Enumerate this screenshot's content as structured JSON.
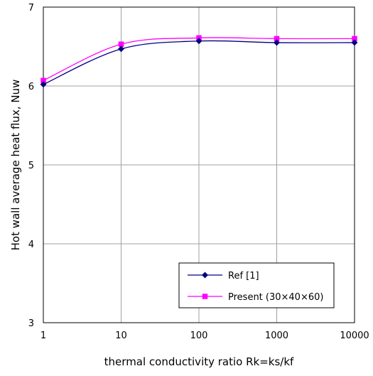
{
  "chart_data": {
    "type": "line",
    "xlabel": "thermal conductivity ratio Rk=ks/kf",
    "ylabel": "Hot wall average heat flux, Nuw",
    "x_scale": "log",
    "xlim": [
      1,
      10000
    ],
    "ylim": [
      3,
      7
    ],
    "x_ticks": [
      1,
      10,
      100,
      1000,
      10000
    ],
    "x_tick_labels": [
      "1",
      "10",
      "100",
      "1000",
      "10000"
    ],
    "y_ticks": [
      3,
      4,
      5,
      6,
      7
    ],
    "y_tick_labels": [
      "3",
      "4",
      "5",
      "6",
      "7"
    ],
    "grid": true,
    "legend_position": "bottom-right",
    "x": [
      1,
      10,
      100,
      1000,
      10000
    ],
    "series": [
      {
        "name": "Ref [1]",
        "values": [
          6.02,
          6.47,
          6.57,
          6.55,
          6.55
        ],
        "color": "#000080",
        "marker": "diamond"
      },
      {
        "name": "Present (30×40×60)",
        "values": [
          6.07,
          6.53,
          6.61,
          6.6,
          6.6
        ],
        "color": "#ff00ff",
        "marker": "square"
      }
    ]
  }
}
